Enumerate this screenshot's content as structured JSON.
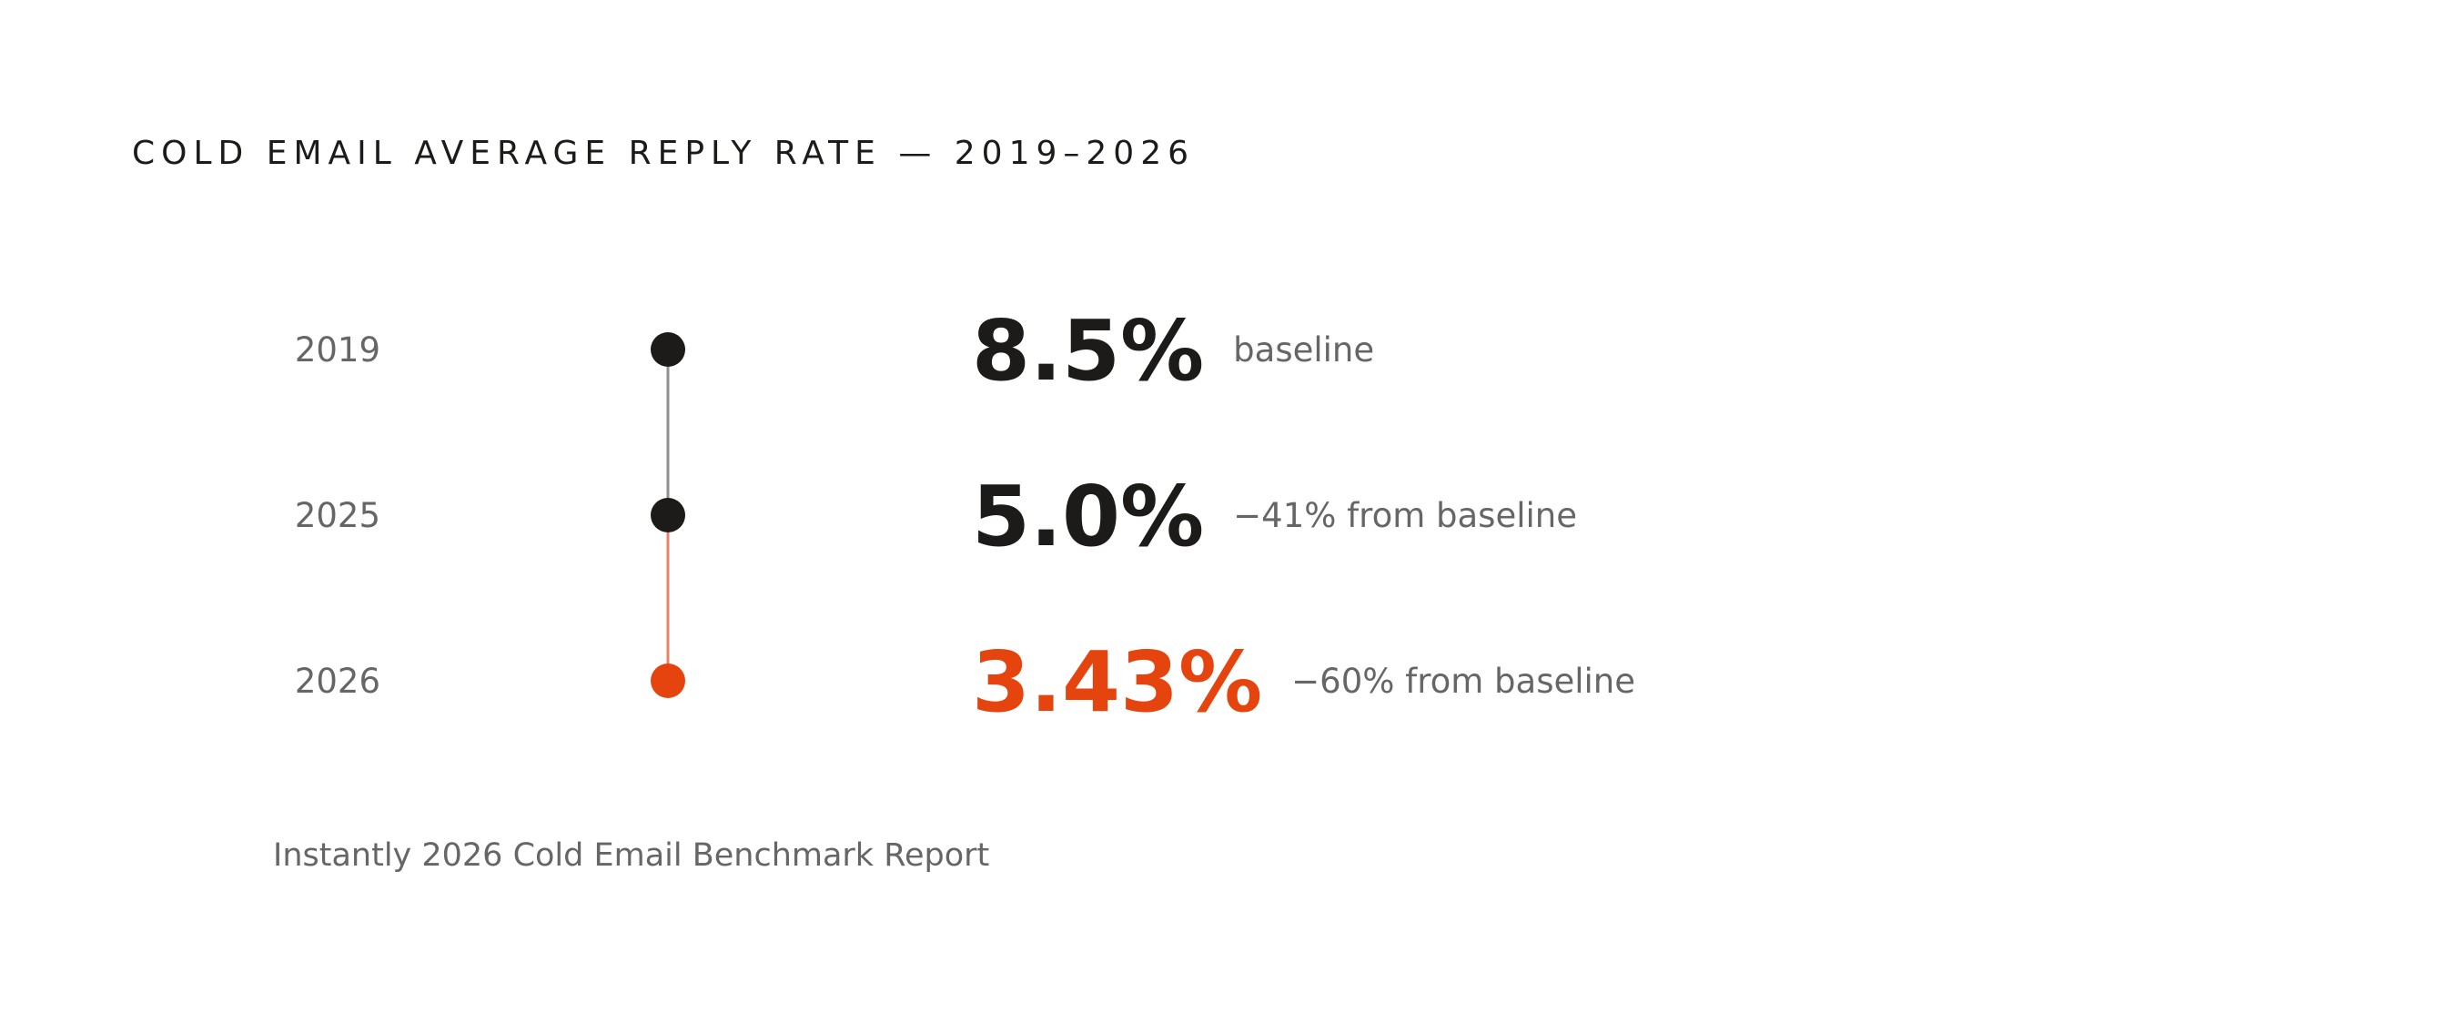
{
  "chart_data": {
    "type": "line",
    "title": "COLD EMAIL AVERAGE REPLY RATE — 2019–2026",
    "source": "Instantly 2026 Cold Email Benchmark Report",
    "points": [
      {
        "year": "2019",
        "value": 8.5,
        "value_label": "8.5%",
        "note": "baseline"
      },
      {
        "year": "2025",
        "value": 5.0,
        "value_label": "5.0%",
        "note": "−41% from baseline"
      },
      {
        "year": "2026",
        "value": 3.43,
        "value_label": "3.43%",
        "note": "−60% from baseline"
      }
    ],
    "colors": {
      "text_dark": "#1c1b19",
      "text_muted": "#666666",
      "accent": "#e5440f",
      "segment_gray": "#8f8f8f",
      "segment_accent": "#e8826a"
    }
  }
}
